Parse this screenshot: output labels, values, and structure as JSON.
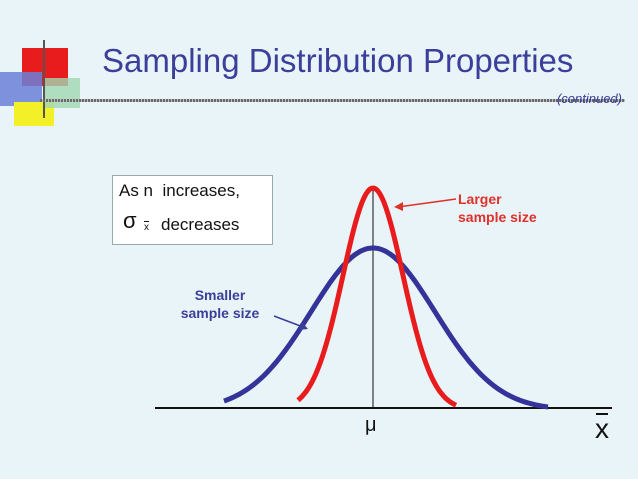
{
  "slide": {
    "title": "Sampling Distribution Properties",
    "subtitle": "(continued)"
  },
  "info_box": {
    "line1": "As n  increases,",
    "sigma_symbol": "σ",
    "sigma_subscript": "x",
    "line2": "decreases"
  },
  "labels": {
    "larger": "Larger\nsample size",
    "smaller": "Smaller\nsample size",
    "mu": "μ",
    "x_axis": "x"
  },
  "colors": {
    "background": "#e8f4f8",
    "title": "#3b3f9a",
    "larger_curve": "#e81c1c",
    "smaller_curve": "#333399",
    "axis": "#111111"
  }
}
